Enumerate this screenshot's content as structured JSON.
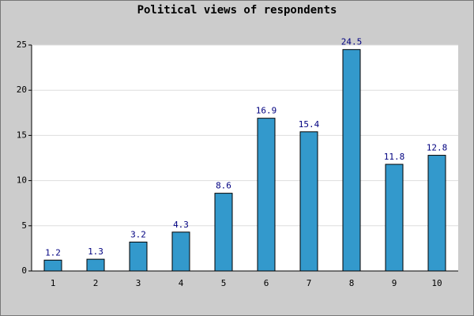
{
  "chart_data": {
    "type": "bar",
    "title": "Political views of respondents",
    "categories": [
      "1",
      "2",
      "3",
      "4",
      "5",
      "6",
      "7",
      "8",
      "9",
      "10"
    ],
    "values": [
      1.2,
      1.3,
      3.2,
      4.3,
      8.6,
      16.9,
      15.4,
      24.5,
      11.8,
      12.8
    ],
    "color": "#3399cc",
    "ylim": [
      0,
      25
    ],
    "yticks": [
      0,
      5,
      10,
      15,
      20,
      25
    ],
    "grid": true
  }
}
